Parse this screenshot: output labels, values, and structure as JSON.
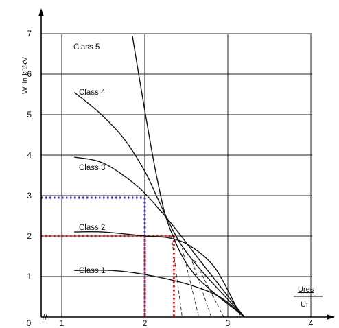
{
  "chart_data": {
    "type": "line",
    "title": "",
    "ylabel": "W' in kJ/kV",
    "xlabel_top": "Ures",
    "xlabel_bottom": "Ur",
    "xlim": [
      0,
      4
    ],
    "ylim": [
      0,
      7
    ],
    "x_ticks": [
      "0",
      "1",
      "2",
      "3",
      "4"
    ],
    "y_ticks": [
      "1",
      "2",
      "3",
      "4",
      "5",
      "6",
      "7"
    ],
    "grid": true,
    "axis_break": "//",
    "series": [
      {
        "name": "Class 1",
        "label_pos": [
          0.6,
          1.2
        ],
        "points": [
          [
            1.15,
            1.15
          ],
          [
            1.6,
            1.15
          ],
          [
            2.0,
            1.05
          ],
          [
            2.5,
            0.82
          ],
          [
            2.9,
            0.5
          ],
          [
            3.2,
            0.0
          ]
        ]
      },
      {
        "name": "Class 2",
        "label_pos": [
          0.6,
          2.1
        ],
        "points": [
          [
            1.15,
            2.1
          ],
          [
            1.5,
            2.1
          ],
          [
            2.0,
            2.0
          ],
          [
            2.3,
            1.95
          ],
          [
            2.55,
            1.75
          ],
          [
            2.85,
            1.2
          ],
          [
            3.15,
            0.05
          ]
        ]
      },
      {
        "name": "Class 3",
        "label_pos": [
          0.6,
          3.95
        ],
        "points": [
          [
            1.15,
            3.95
          ],
          [
            1.5,
            3.8
          ],
          [
            1.9,
            3.25
          ],
          [
            2.2,
            2.6
          ],
          [
            2.4,
            2.1
          ],
          [
            2.7,
            1.3
          ],
          [
            3.2,
            0.0
          ]
        ]
      },
      {
        "name": "Class 4",
        "label_pos": [
          0.6,
          5.6
        ],
        "points": [
          [
            1.15,
            5.55
          ],
          [
            1.45,
            5.05
          ],
          [
            1.75,
            4.4
          ],
          [
            2.0,
            3.6
          ],
          [
            2.15,
            2.95
          ],
          [
            2.3,
            2.3
          ],
          [
            2.45,
            1.75
          ],
          [
            2.7,
            1.1
          ],
          [
            3.2,
            0.0
          ]
        ]
      },
      {
        "name": "Class 5",
        "label_pos": [
          0.6,
          6.65
        ],
        "points": [
          [
            1.85,
            6.95
          ],
          [
            2.0,
            5.1
          ],
          [
            2.15,
            3.4
          ],
          [
            2.3,
            2.2
          ],
          [
            2.6,
            1.05
          ],
          [
            3.2,
            0.0
          ]
        ]
      }
    ],
    "dashed_extensions": [
      [
        [
          2.32,
          2.0
        ],
        [
          2.45,
          0.0
        ]
      ],
      [
        [
          2.45,
          1.7
        ],
        [
          2.65,
          0.0
        ]
      ],
      [
        [
          2.55,
          1.5
        ],
        [
          2.8,
          0.0
        ]
      ],
      [
        [
          2.6,
          1.4
        ],
        [
          2.95,
          0.0
        ]
      ]
    ],
    "reference_lines": [
      {
        "color": "#3333cc",
        "x": 2.0,
        "y": 2.95
      },
      {
        "color": "#dd2222",
        "x": 2.0,
        "y": 2.0
      },
      {
        "color": "#dd2222",
        "x": 2.35,
        "y": 2.0
      }
    ]
  }
}
